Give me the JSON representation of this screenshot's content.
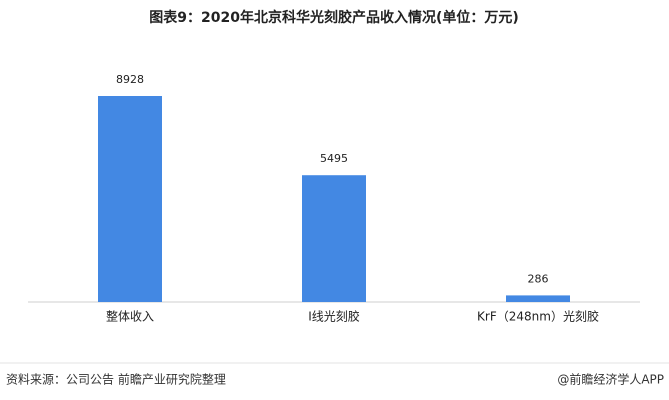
{
  "chart_data": {
    "type": "bar",
    "title": "图表9：2020年北京科华光刻胶产品收入情况(单位：万元)",
    "categories": [
      "整体收入",
      "I线光刻胶",
      "KrF（248nm）光刻胶"
    ],
    "values": [
      8928,
      5495,
      286
    ],
    "color": "#4388e3"
  },
  "footer": {
    "source": "资料来源：公司公告 前瞻产业研究院整理",
    "brand": "@前瞻经济学人APP"
  }
}
